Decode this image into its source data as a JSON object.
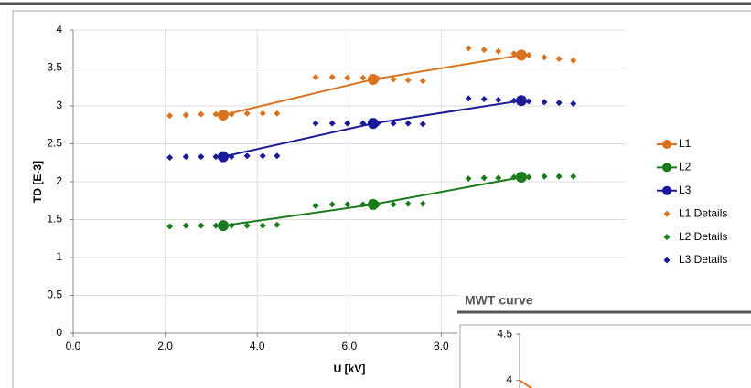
{
  "chart_data": [
    {
      "type": "scatter",
      "xlabel": "U [kV]",
      "ylabel": "TD [E-3]",
      "xlim": [
        0,
        12
      ],
      "ylim": [
        0,
        4
      ],
      "xticks": [
        {
          "value": 0,
          "label": "0.0"
        },
        {
          "value": 2,
          "label": "2.0"
        },
        {
          "value": 4,
          "label": "4.0"
        },
        {
          "value": 6,
          "label": "6.0"
        },
        {
          "value": 8,
          "label": "8.0"
        }
      ],
      "yticks": [
        0,
        0.5,
        1,
        1.5,
        2,
        2.5,
        3,
        3.5,
        4
      ],
      "grid": true,
      "legend": "right",
      "series": [
        {
          "name": "L1",
          "color": "#d9731f",
          "style": "line",
          "x": [
            3.26,
            6.52,
            9.74
          ],
          "values": [
            2.88,
            3.35,
            3.67
          ]
        },
        {
          "name": "L2",
          "color": "#1b7a1b",
          "style": "line",
          "x": [
            3.26,
            6.52,
            9.74
          ],
          "values": [
            1.42,
            1.7,
            2.06
          ]
        },
        {
          "name": "L3",
          "color": "#1a1a99",
          "style": "line",
          "x": [
            3.26,
            6.52,
            9.74
          ],
          "values": [
            2.33,
            2.77,
            3.07
          ]
        },
        {
          "name": "L1 Details",
          "color": "#d9731f",
          "style": "points",
          "x": [
            2.1,
            2.45,
            2.78,
            3.1,
            3.44,
            3.78,
            4.12,
            4.43,
            5.27,
            5.63,
            5.96,
            6.3,
            6.62,
            6.96,
            7.28,
            7.6,
            8.59,
            8.93,
            9.24,
            9.58,
            9.9,
            10.24,
            10.56,
            10.87
          ],
          "values": [
            2.87,
            2.88,
            2.89,
            2.89,
            2.89,
            2.9,
            2.9,
            2.9,
            3.38,
            3.38,
            3.37,
            3.37,
            3.36,
            3.35,
            3.34,
            3.33,
            3.76,
            3.74,
            3.72,
            3.69,
            3.67,
            3.64,
            3.62,
            3.6
          ]
        },
        {
          "name": "L2 Details",
          "color": "#1b7a1b",
          "style": "points",
          "x": [
            2.1,
            2.45,
            2.78,
            3.1,
            3.44,
            3.78,
            4.12,
            4.43,
            5.27,
            5.63,
            5.96,
            6.3,
            6.62,
            6.96,
            7.28,
            7.6,
            8.59,
            8.93,
            9.24,
            9.58,
            9.9,
            10.24,
            10.56,
            10.87
          ],
          "values": [
            1.41,
            1.42,
            1.42,
            1.42,
            1.42,
            1.42,
            1.42,
            1.43,
            1.68,
            1.7,
            1.7,
            1.7,
            1.7,
            1.7,
            1.71,
            1.71,
            2.04,
            2.05,
            2.05,
            2.06,
            2.06,
            2.07,
            2.07,
            2.07
          ]
        },
        {
          "name": "L3 Details",
          "color": "#1a1a99",
          "style": "points",
          "x": [
            2.1,
            2.45,
            2.78,
            3.1,
            3.44,
            3.78,
            4.12,
            4.43,
            5.27,
            5.63,
            5.96,
            6.3,
            6.62,
            6.96,
            7.28,
            7.6,
            8.59,
            8.93,
            9.24,
            9.58,
            9.9,
            10.24,
            10.56,
            10.87
          ],
          "values": [
            2.32,
            2.33,
            2.33,
            2.33,
            2.33,
            2.34,
            2.34,
            2.34,
            2.77,
            2.77,
            2.77,
            2.77,
            2.77,
            2.77,
            2.77,
            2.76,
            3.1,
            3.09,
            3.08,
            3.07,
            3.06,
            3.05,
            3.04,
            3.03
          ]
        }
      ]
    },
    {
      "type": "line",
      "title": "MWT curve",
      "xlim": [
        0,
        1
      ],
      "ylim": [
        3.5,
        4.6
      ],
      "yticks": [
        4,
        4.5
      ],
      "series": [
        {
          "name": "L1",
          "color": "#d9731f",
          "x": [
            0,
            0.06
          ],
          "values": [
            4.0,
            3.9
          ]
        }
      ]
    }
  ]
}
